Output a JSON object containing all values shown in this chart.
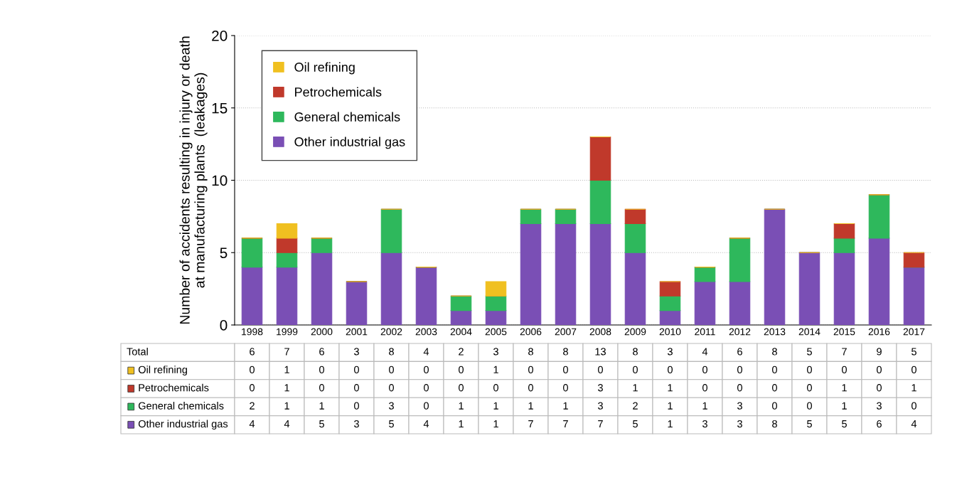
{
  "chart_data": {
    "type": "bar",
    "stacked": true,
    "ylabel": "Number of accidents resulting in injury or death\nat manufacturing plants  (leakages)",
    "categories": [
      "1998",
      "1999",
      "2000",
      "2001",
      "2002",
      "2003",
      "2004",
      "2005",
      "2006",
      "2007",
      "2008",
      "2009",
      "2010",
      "2011",
      "2012",
      "2013",
      "2014",
      "2015",
      "2016",
      "2017"
    ],
    "series": [
      {
        "name": "Other industrial gas",
        "color": "#7a4fb5",
        "values": [
          4,
          4,
          5,
          3,
          5,
          4,
          1,
          1,
          7,
          7,
          7,
          5,
          1,
          3,
          3,
          8,
          5,
          5,
          6,
          4
        ]
      },
      {
        "name": "General chemicals",
        "color": "#2eb85c",
        "values": [
          2,
          1,
          1,
          0,
          3,
          0,
          1,
          1,
          1,
          1,
          3,
          2,
          1,
          1,
          3,
          0,
          0,
          1,
          3,
          0
        ]
      },
      {
        "name": "Petrochemicals",
        "color": "#c0392b",
        "values": [
          0,
          1,
          0,
          0,
          0,
          0,
          0,
          0,
          0,
          0,
          3,
          1,
          1,
          0,
          0,
          0,
          0,
          1,
          0,
          1
        ]
      },
      {
        "name": "Oil refining",
        "color": "#f0c020",
        "values": [
          0,
          1,
          0,
          0,
          0,
          0,
          0,
          1,
          0,
          0,
          0,
          0,
          0,
          0,
          0,
          0,
          0,
          0,
          0,
          0
        ]
      }
    ],
    "totals": [
      "6",
      "7",
      "6",
      "3",
      "8",
      "4",
      "2",
      "3",
      "8",
      "8",
      "13",
      "8",
      "3",
      "4",
      "6",
      "8",
      "5",
      "7",
      "9",
      "5"
    ],
    "annotations": [
      "Total"
    ],
    "data_labels": true,
    "ylim": [
      0,
      20
    ],
    "yticks": [
      0,
      5,
      10,
      15,
      20
    ],
    "grid": "y",
    "legend": "top left"
  }
}
